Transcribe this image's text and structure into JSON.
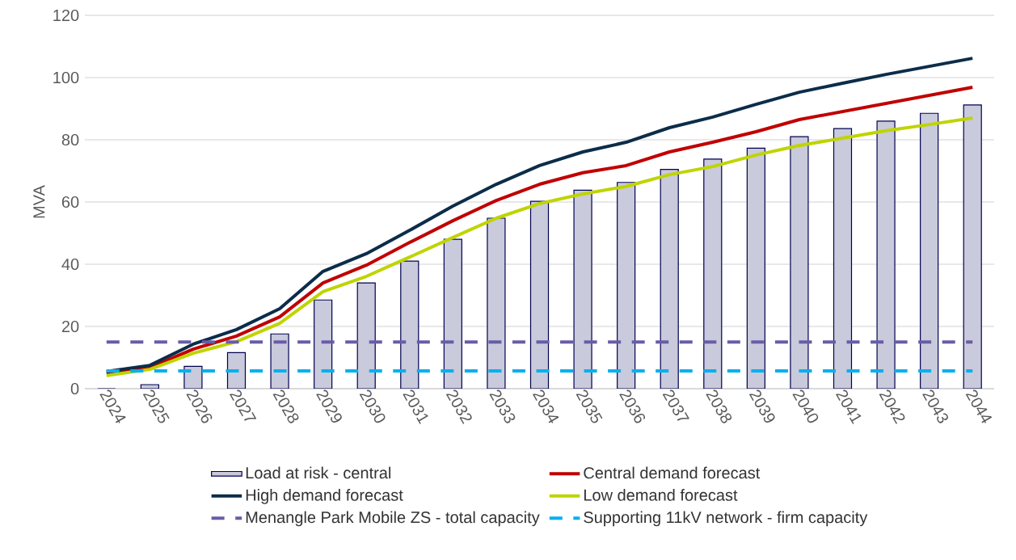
{
  "chart_data": {
    "type": "line",
    "ylabel": "MVA",
    "categories": [
      "2024",
      "2025",
      "2026",
      "2027",
      "2028",
      "2029",
      "2030",
      "2031",
      "2032",
      "2033",
      "2034",
      "2035",
      "2036",
      "2037",
      "2038",
      "2039",
      "2040",
      "2041",
      "2042",
      "2043",
      "2044"
    ],
    "series": [
      {
        "name": "Load at risk - central",
        "type": "bar",
        "color": "#c9cadb",
        "values": [
          0,
          1.3,
          7.2,
          11.6,
          17.6,
          28.5,
          34,
          41,
          48,
          54.8,
          60.2,
          63.8,
          66.3,
          70.5,
          73.8,
          77.3,
          81,
          83.6,
          86,
          88.5,
          91.2
        ]
      },
      {
        "name": "Central demand forecast",
        "color": "#c00000",
        "values": [
          5,
          6.8,
          12.7,
          16.9,
          23.1,
          34,
          39.7,
          47,
          54,
          60.5,
          65.7,
          69.4,
          71.7,
          76.1,
          79.2,
          82.6,
          86.5,
          89.1,
          91.7,
          94.3,
          96.9
        ]
      },
      {
        "name": "High demand forecast",
        "color": "#0b2d4a",
        "values": [
          5.5,
          7.5,
          14.3,
          19,
          25.7,
          37.7,
          43.4,
          50.9,
          58.7,
          65.7,
          71.7,
          76.1,
          79.2,
          83.9,
          87.3,
          91.4,
          95.3,
          98.2,
          101,
          103.6,
          106.2
        ]
      },
      {
        "name": "Low demand forecast",
        "color": "#bfd400",
        "values": [
          4.2,
          6.2,
          11.4,
          15.1,
          21,
          31.2,
          36.1,
          42.3,
          48.6,
          54.8,
          59.5,
          62.6,
          65,
          68.8,
          71.4,
          75.1,
          78.2,
          80.5,
          82.9,
          84.9,
          87
        ]
      },
      {
        "name": "Menangle Park Mobile ZS - total capacity",
        "color": "#6a5ca8",
        "line_style": "dashed",
        "values": [
          15,
          15,
          15,
          15,
          15,
          15,
          15,
          15,
          15,
          15,
          15,
          15,
          15,
          15,
          15,
          15,
          15,
          15,
          15,
          15,
          15
        ]
      },
      {
        "name": "Supporting 11kV network - firm capacity",
        "color": "#00b0f0",
        "line_style": "dashed",
        "values": [
          5.7,
          5.7,
          5.7,
          5.7,
          5.7,
          5.7,
          5.7,
          5.7,
          5.7,
          5.7,
          5.7,
          5.7,
          5.7,
          5.7,
          5.7,
          5.7,
          5.7,
          5.7,
          5.7,
          5.7,
          5.7
        ]
      }
    ],
    "ylim": [
      0,
      120
    ],
    "yticks": [
      0,
      20,
      40,
      60,
      80,
      100,
      120
    ],
    "grid": "y",
    "legend": "bottom"
  }
}
